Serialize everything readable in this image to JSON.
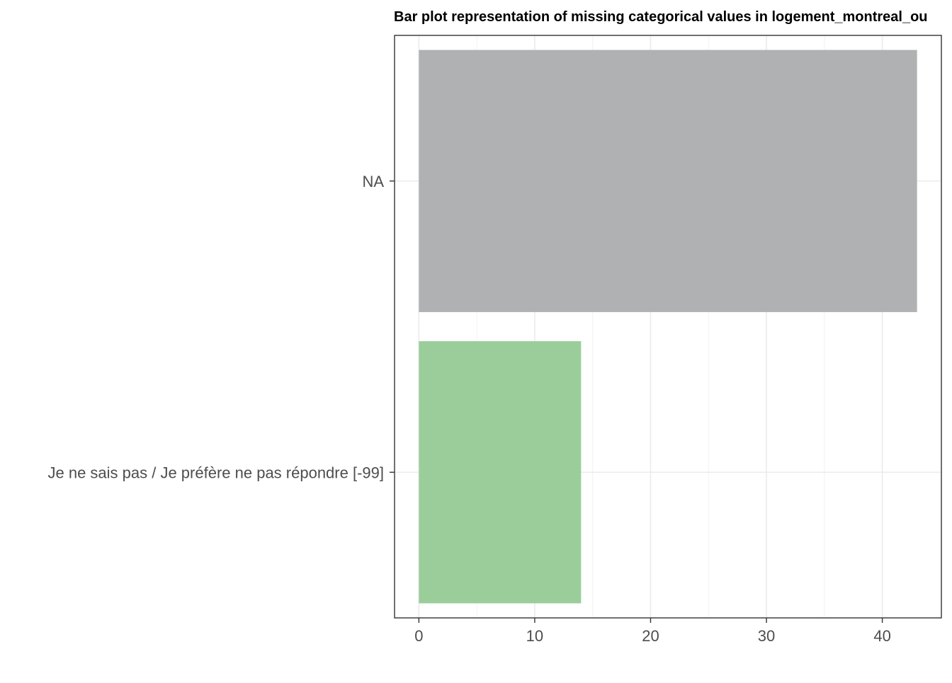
{
  "chart_data": {
    "type": "bar",
    "orientation": "horizontal",
    "title": "Bar plot representation of missing categorical values in logement_montreal_ou",
    "xlabel": "",
    "ylabel": "",
    "categories": [
      "NA",
      "Je ne sais pas / Je préfère ne pas répondre [-99]"
    ],
    "values": [
      43,
      14
    ],
    "colors": [
      "#B0B1B3",
      "#9ACD9A"
    ],
    "xlim": [
      -2.1,
      45.1
    ],
    "xticks": [
      0,
      10,
      20,
      30,
      40
    ],
    "grid": true,
    "legend": "none"
  }
}
